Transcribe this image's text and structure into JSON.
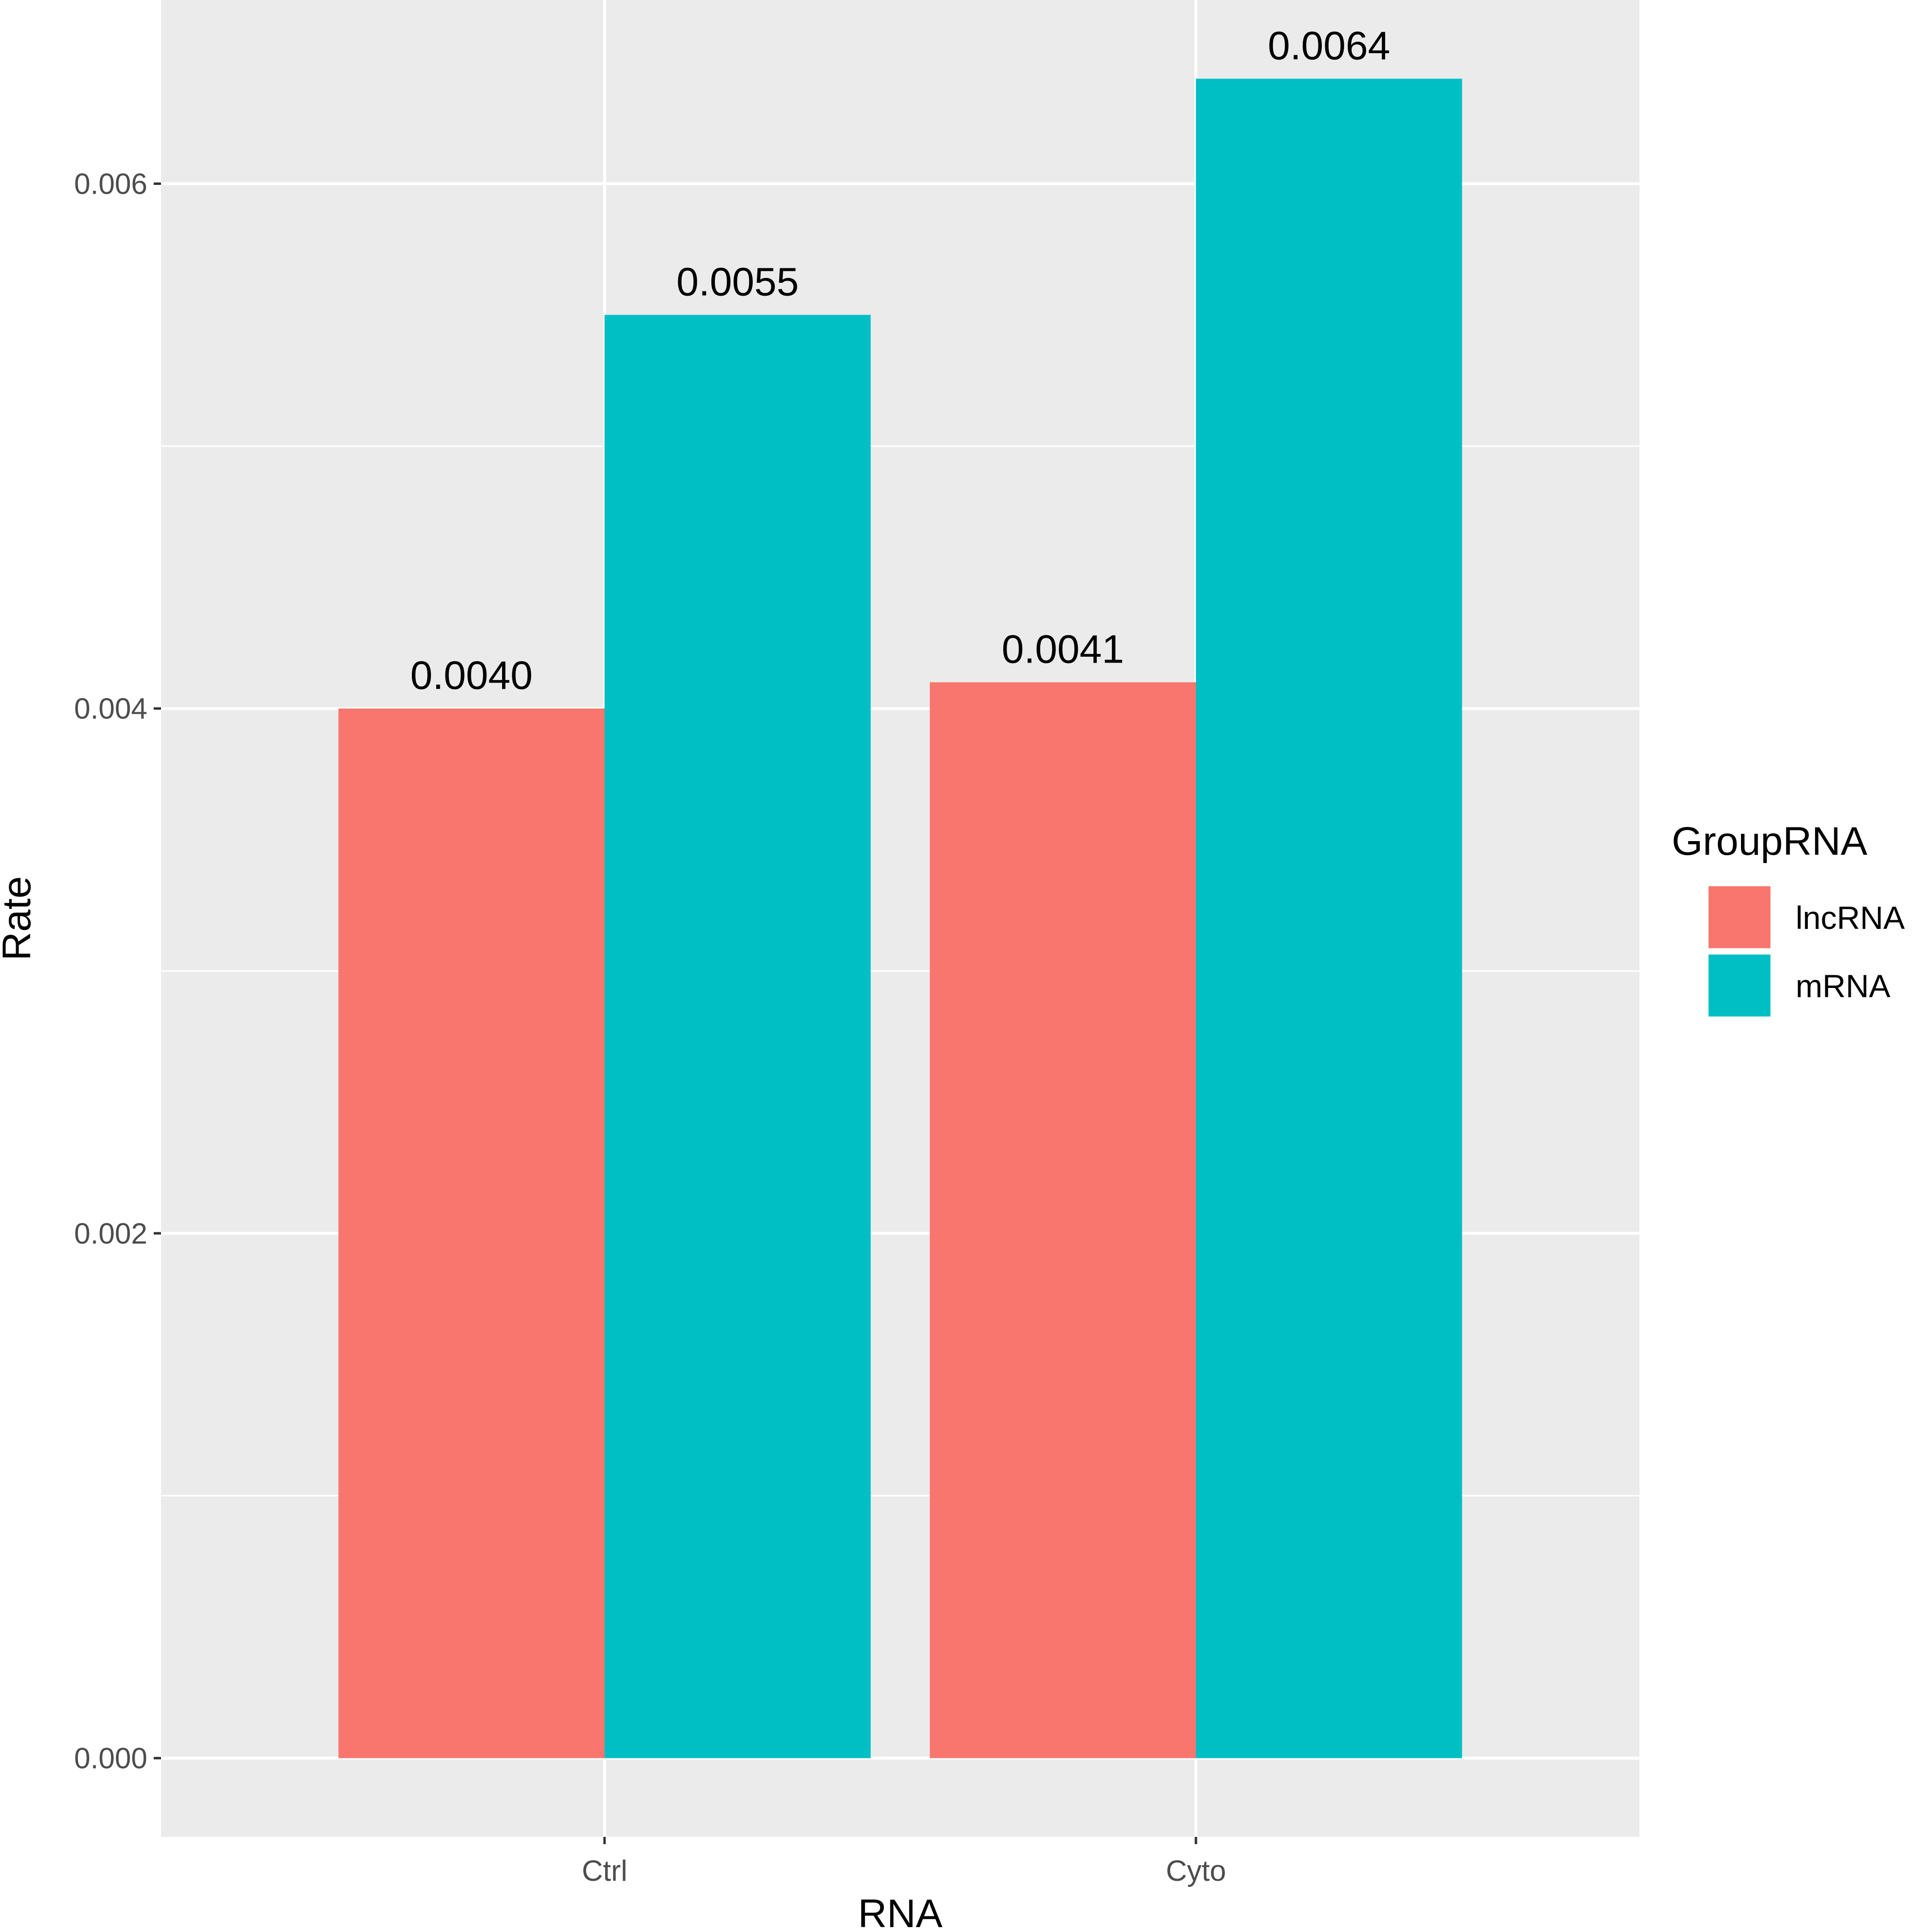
{
  "chart_data": {
    "type": "bar",
    "title": "",
    "xlabel": "RNA",
    "ylabel": "Rate",
    "categories": [
      "Ctrl",
      "Cyto"
    ],
    "series": [
      {
        "name": "lncRNA",
        "color": "#F8766D",
        "values": [
          0.004,
          0.0041
        ],
        "labels": [
          "0.0040",
          "0.0041"
        ]
      },
      {
        "name": "mRNA",
        "color": "#00BFC4",
        "values": [
          0.0055,
          0.0064
        ],
        "labels": [
          "0.0055",
          "0.0064"
        ]
      }
    ],
    "ylim": [
      -0.0003,
      0.0067
    ],
    "yticks": [
      0.0,
      0.002,
      0.004,
      0.006
    ],
    "ytick_labels": [
      "0.000",
      "0.002",
      "0.004",
      "0.006"
    ],
    "grid": true,
    "legend": {
      "title": "GroupRNA",
      "position": "right"
    },
    "colors": {
      "panel": "#EBEBEB",
      "grid": "#FFFFFF",
      "tick": "#333333"
    }
  }
}
